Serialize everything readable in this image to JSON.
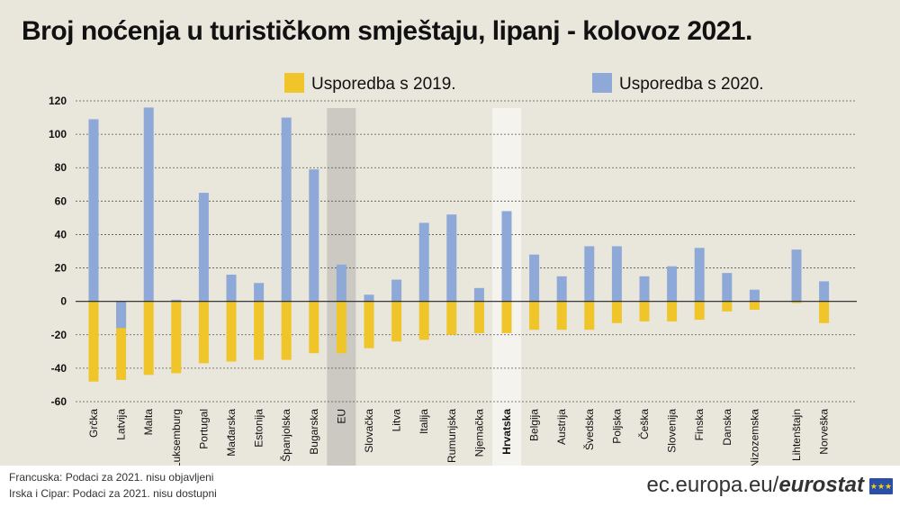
{
  "title": "Broj noćenja u turističkom smještaju, lipanj - kolovoz 2021.",
  "footer": {
    "note1": "Francuska: Podaci za 2021. nisu objavljeni",
    "note2": "Irska i Cipar: Podaci za 2021. nisu dostupni",
    "site_prefix": "ec.europa.eu/",
    "site_brand": "eurostat"
  },
  "colors": {
    "vs2019": "#f0c529",
    "vs2020": "#8ea9d8",
    "eu_band": "#cbc9c1",
    "hr_band": "#f4f3ee",
    "background": "#e9e6dc"
  },
  "chart_data": {
    "type": "bar",
    "title": "Broj noćenja u turističkom smještaju, lipanj - kolovoz 2021.",
    "ylim": [
      -60,
      120
    ],
    "yticks": [
      120,
      100,
      80,
      60,
      40,
      20,
      0,
      -20,
      -40,
      -60
    ],
    "grid": true,
    "legend_position": "top",
    "highlighted": [
      "EU",
      "Hrvatska"
    ],
    "categories": [
      "Grčka",
      "Latvija",
      "Malta",
      "Luksemburg",
      "Portugal",
      "Mađarska",
      "Estonija",
      "Španjolska",
      "Bugarska",
      "EU",
      "Slovačka",
      "Litva",
      "Italija",
      "Rumunjska",
      "Njemačka",
      "Hrvatska",
      "Belgija",
      "Austrija",
      "Švedska",
      "Poljska",
      "Češka",
      "Slovenija",
      "Finska",
      "Danska",
      "Nizozemska",
      "Lihtenštajn",
      "Norveška"
    ],
    "series": [
      {
        "name": "Usporedba s 2019.",
        "values": [
          -48,
          -47,
          -44,
          -43,
          -37,
          -36,
          -35,
          -35,
          -31,
          -31,
          -28,
          -24,
          -23,
          -20,
          -19,
          -19,
          -17,
          -17,
          -17,
          -13,
          -12,
          -12,
          -11,
          -6,
          -5,
          -1,
          -13
        ]
      },
      {
        "name": "Usporedba s 2020.",
        "values": [
          109,
          -16,
          116,
          1,
          65,
          16,
          11,
          110,
          79,
          22,
          4,
          13,
          47,
          52,
          8,
          54,
          28,
          15,
          33,
          33,
          15,
          21,
          32,
          17,
          7,
          31,
          12
        ]
      }
    ]
  }
}
